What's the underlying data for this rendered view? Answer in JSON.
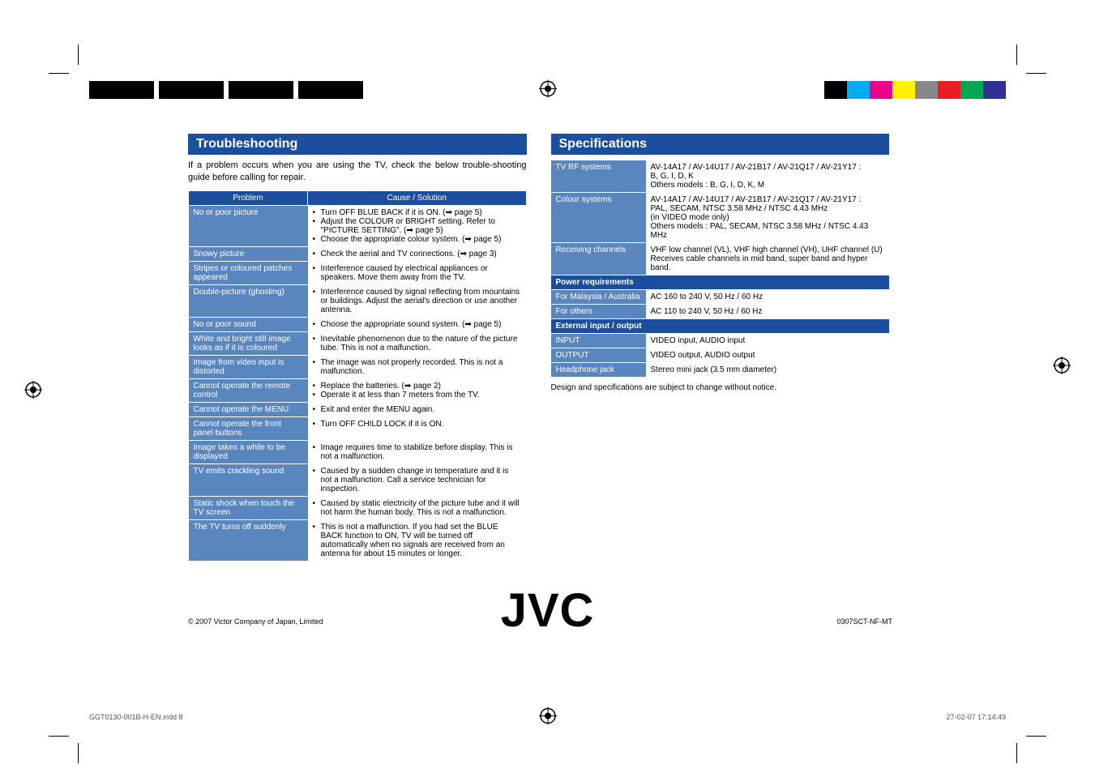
{
  "print_marks": {
    "color_swatches": [
      "#000000",
      "#00adee",
      "#ec008c",
      "#fff200",
      "#888888",
      "#ed1b24",
      "#00a650",
      "#2e3192"
    ],
    "bw_block": "#000000"
  },
  "troubleshooting": {
    "title": "Troubleshooting",
    "intro": "If a problem occurs when you are using the TV, check the below trouble-shooting guide before calling for repair.",
    "header_problem": "Problem",
    "header_solution": "Cause / Solution",
    "rows": [
      {
        "problem": "No or poor picture",
        "items": [
          "Turn OFF BLUE BACK if it is ON. (➡ page 5)",
          "Adjust the COLOUR or BRIGHT setting. Refer to \"PICTURE SETTING\". (➡ page 5)",
          "Choose the appropriate colour system. (➡ page 5)"
        ]
      },
      {
        "problem": "Snowy picture",
        "items": [
          "Check the aerial and TV connections. (➡ page 3)"
        ]
      },
      {
        "problem": "Stripes or coloured patches appeared",
        "items": [
          "Interference caused by electrical appliances or speakers. Move them away from the TV."
        ]
      },
      {
        "problem": "Double-picture (ghosting)",
        "items": [
          "Interference caused by signal reflecting from mountains or buildings. Adjust the aerial's direction or use another antenna."
        ]
      },
      {
        "problem": "No or poor sound",
        "items": [
          "Choose the appropriate sound system. (➡ page 5)"
        ]
      },
      {
        "problem": "White and bright still image looks as if it is coloured",
        "items": [
          "Inevitable phenomenon due to the nature of the picture tube. This is not a malfunction."
        ]
      },
      {
        "problem": "Image from video input is distorted",
        "items": [
          "The image was not properly recorded. This is not a malfunction."
        ]
      },
      {
        "problem": "Cannot operate the remote control",
        "items": [
          "Replace the batteries. (➡ page 2)",
          "Operate it at less than 7 meters from the TV."
        ]
      },
      {
        "problem": "Cannot operate the MENU",
        "items": [
          "Exit and enter the MENU again."
        ]
      },
      {
        "problem": "Cannot operate the front panel buttons",
        "items": [
          "Turn OFF CHILD LOCK if it is ON."
        ]
      },
      {
        "problem": "Image takes a while to be displayed",
        "items": [
          "Image requires time to stabilize before display. This is not a malfunction."
        ]
      },
      {
        "problem": "TV emits crackling sound",
        "items": [
          "Caused by a sudden change in temperature and it is not a malfunction. Call a service technician for inspection."
        ]
      },
      {
        "problem": "Static shock when touch the TV screen",
        "items": [
          "Caused by static electricity of the picture tube and it will not harm the human body. This is not a malfunction."
        ]
      },
      {
        "problem": "The TV turns off suddenly",
        "items": [
          "This is not a malfunction. If you had set the BLUE BACK function to ON, TV will be turned off automatically when no signals are received from an antenna for about 15 minutes or longer."
        ]
      }
    ]
  },
  "specifications": {
    "title": "Specifications",
    "rows1": [
      {
        "k": "TV RF systems",
        "v": "AV-14A17 / AV-14U17 / AV-21B17 / AV-21Q17 / AV-21Y17 :\nB, G, I, D, K\nOthers models : B, G, I, D, K, M"
      },
      {
        "k": "Colour systems",
        "v": "AV-14A17 / AV-14U17 / AV-21B17 / AV-21Q17 / AV-21Y17 :\nPAL, SECAM, NTSC 3.58 MHz / NTSC 4.43 MHz\n(in VIDEO mode only)\nOthers models : PAL, SECAM, NTSC 3.58 MHz / NTSC 4.43 MHz"
      },
      {
        "k": "Receiving channels",
        "v": "VHF low channel (VL), VHF high channel (VH), UHF channel (U)\nReceives cable channels in mid band, super band and hyper band."
      }
    ],
    "hdr_power": "Power requirements",
    "rows2": [
      {
        "k": "For Malaysia / Australia",
        "v": "AC 160 to 240 V, 50 Hz / 60 Hz"
      },
      {
        "k": "For others",
        "v": "AC 110 to 240 V, 50 Hz / 60 Hz"
      }
    ],
    "hdr_io": "External input / output",
    "rows3": [
      {
        "k": "INPUT",
        "v": "VIDEO input, AUDIO input"
      },
      {
        "k": "OUTPUT",
        "v": "VIDEO output, AUDIO output"
      },
      {
        "k": "Headphone jack",
        "v": "Stereo mini jack (3.5 mm diameter)"
      }
    ],
    "footer": "Design and specifications are subject to change without notice."
  },
  "logo": "JVC",
  "copyright": "© 2007 Victor Company of Japan, Limited",
  "partnum": "0307SCT-NF-MT",
  "bottom_file": "GGT0130-001B-H-EN.indd   8",
  "bottom_date": "27-02-07   17:14:49"
}
